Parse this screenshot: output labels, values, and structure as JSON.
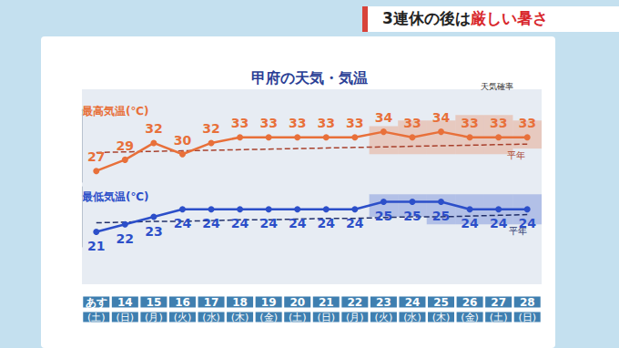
{
  "banner": {
    "text": "3連休の後は",
    "emphasis": "厳しい暑さ"
  },
  "chart_data": [
    {
      "type": "line",
      "title": "甲府の天気・気温",
      "annotations": [
        "天気確率"
      ],
      "ylabel": "最高気温(℃)",
      "categories": [
        "あす(土)",
        "14(日)",
        "15(月)",
        "16(火)",
        "17(水)",
        "18(木)",
        "19(金)",
        "20(土)",
        "21(日)",
        "22(月)",
        "23(火)",
        "24(水)",
        "25(木)",
        "26(金)",
        "27(土)",
        "28(日)"
      ],
      "ylim": [
        25,
        38
      ],
      "yticks": [],
      "tick_labels": false,
      "grid": false,
      "series": [
        {
          "color": "#e8703a",
          "marker": "circle",
          "data_labels": true,
          "values": [
            27,
            29,
            32,
            30,
            32,
            33,
            33,
            33,
            33,
            33,
            34,
            33,
            34,
            33,
            33,
            33
          ],
          "band": {
            "low": [
              null,
              null,
              null,
              null,
              null,
              null,
              null,
              null,
              null,
              null,
              30,
              30,
              30,
              30,
              30,
              31
            ],
            "high": [
              null,
              null,
              null,
              null,
              null,
              null,
              null,
              null,
              null,
              null,
              35,
              36,
              36,
              37,
              37,
              36
            ]
          }
        },
        {
          "name": "平年",
          "color": "#a8402c",
          "line_style": "dashed",
          "values": [
            30.3,
            30.4,
            30.5,
            30.6,
            30.7,
            30.8,
            30.9,
            31.0,
            31.1,
            31.2,
            31.3,
            31.4,
            31.5,
            31.6,
            31.7,
            31.8
          ]
        }
      ]
    },
    {
      "type": "line",
      "ylabel": "最低気温(℃)",
      "categories": [
        "あす(土)",
        "14(日)",
        "15(月)",
        "16(火)",
        "17(水)",
        "18(木)",
        "19(金)",
        "20(土)",
        "21(日)",
        "22(月)",
        "23(火)",
        "24(水)",
        "25(木)",
        "26(金)",
        "27(土)",
        "28(日)"
      ],
      "ylim": [
        19,
        27
      ],
      "yticks": [],
      "tick_labels": "x",
      "grid": false,
      "series": [
        {
          "color": "#2c4fc9",
          "marker": "circle",
          "data_labels": true,
          "values": [
            21,
            22,
            23,
            24,
            24,
            24,
            24,
            24,
            24,
            24,
            25,
            25,
            25,
            24,
            24,
            24
          ],
          "band": {
            "low": [
              null,
              null,
              null,
              null,
              null,
              null,
              null,
              null,
              null,
              null,
              23,
              23,
              22,
              22,
              22,
              22
            ],
            "high": [
              null,
              null,
              null,
              null,
              null,
              null,
              null,
              null,
              null,
              null,
              26,
              26,
              26,
              26,
              26,
              26
            ]
          }
        },
        {
          "name": "平年",
          "color": "#22306a",
          "line_style": "dashed",
          "values": [
            22.2,
            22.3,
            22.4,
            22.4,
            22.5,
            22.6,
            22.6,
            22.7,
            22.8,
            22.8,
            22.9,
            23.0,
            23.0,
            23.1,
            23.2,
            23.3
          ]
        }
      ]
    }
  ]
}
